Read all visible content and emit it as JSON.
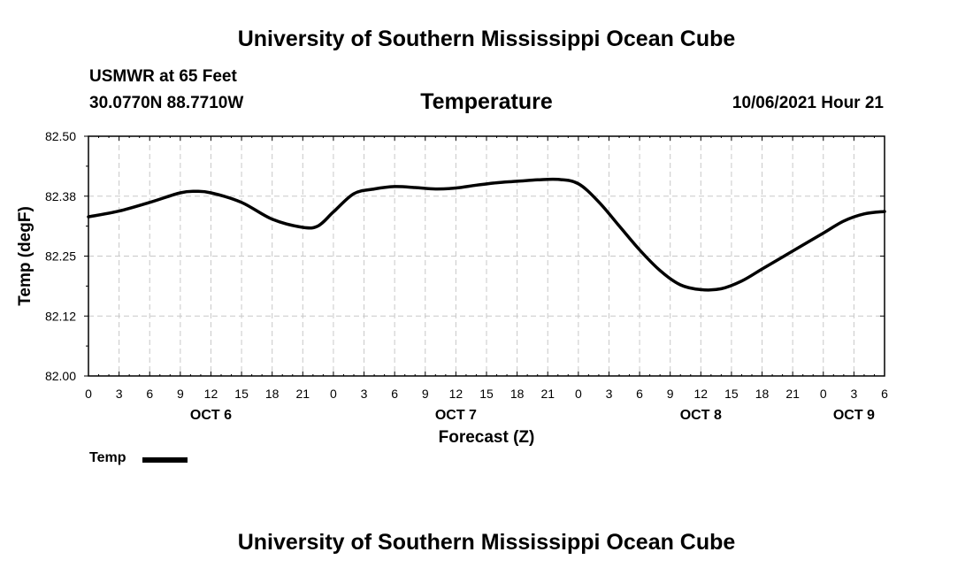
{
  "header": {
    "title": "University of Southern Mississippi Ocean Cube",
    "station": "USMWR at 65 Feet",
    "coords": "30.0770N  88.7710W",
    "variable": "Temperature",
    "datetime": "10/06/2021 Hour 21"
  },
  "footer": {
    "title": "University of Southern Mississippi Ocean Cube"
  },
  "chart_data": {
    "type": "line",
    "title": "Temperature",
    "xlabel": "Forecast (Z)",
    "ylabel": "Temp (degF)",
    "ylim": [
      82.0,
      82.5
    ],
    "xlim": [
      0,
      78
    ],
    "y_ticks": [
      82.0,
      82.125,
      82.25,
      82.375,
      82.5
    ],
    "y_tick_labels": [
      "82.00",
      "82.12",
      "82.25",
      "82.38",
      "82.50"
    ],
    "x_tick_hours": [
      0,
      3,
      6,
      9,
      12,
      15,
      18,
      21,
      24,
      27,
      30,
      33,
      36,
      39,
      42,
      45,
      48,
      51,
      54,
      57,
      60,
      63,
      66,
      69,
      72,
      75,
      78
    ],
    "x_tick_labels": [
      "0",
      "3",
      "6",
      "9",
      "12",
      "15",
      "18",
      "21",
      "0",
      "3",
      "6",
      "9",
      "12",
      "15",
      "18",
      "21",
      "0",
      "3",
      "6",
      "9",
      "12",
      "15",
      "18",
      "21",
      "0",
      "3",
      "6"
    ],
    "day_labels": [
      {
        "label": "OCT 6",
        "hour": 12
      },
      {
        "label": "OCT 7",
        "hour": 36
      },
      {
        "label": "OCT 8",
        "hour": 60
      },
      {
        "label": "OCT 9",
        "hour": 75
      }
    ],
    "grid": true,
    "legend": "bottom-left",
    "series": [
      {
        "name": "Temp",
        "color": "#000000",
        "x": [
          0,
          3,
          6,
          9,
          10.5,
          12,
          15,
          18,
          21,
          22.5,
          24,
          26,
          28,
          30,
          32,
          34,
          36,
          38,
          40,
          42,
          44,
          46,
          48,
          50,
          52,
          54,
          56,
          58,
          60,
          62,
          64,
          66,
          68,
          70,
          72,
          74,
          76,
          78
        ],
        "values": [
          82.332,
          82.344,
          82.362,
          82.382,
          82.385,
          82.382,
          82.362,
          82.327,
          82.31,
          82.313,
          82.342,
          82.38,
          82.39,
          82.395,
          82.393,
          82.39,
          82.392,
          82.398,
          82.403,
          82.406,
          82.409,
          82.41,
          82.401,
          82.363,
          82.313,
          82.263,
          82.22,
          82.19,
          82.18,
          82.182,
          82.198,
          82.223,
          82.248,
          82.273,
          82.298,
          82.323,
          82.338,
          82.343
        ]
      }
    ]
  },
  "legend": {
    "label": "Temp"
  }
}
